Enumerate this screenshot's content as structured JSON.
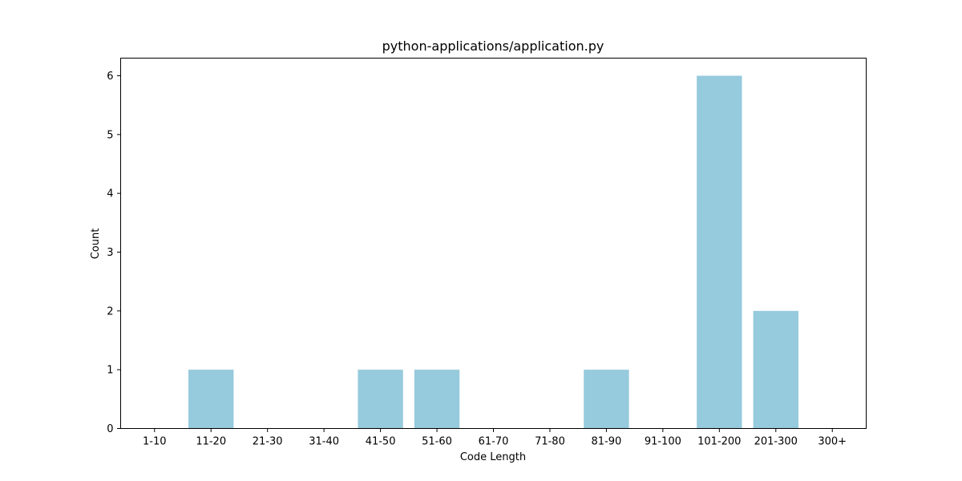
{
  "chart_data": {
    "type": "bar",
    "title": "python-applications/application.py",
    "xlabel": "Code Length",
    "ylabel": "Count",
    "categories": [
      "1-10",
      "11-20",
      "21-30",
      "31-40",
      "41-50",
      "51-60",
      "61-70",
      "71-80",
      "81-90",
      "91-100",
      "101-200",
      "201-300",
      "300+"
    ],
    "values": [
      0,
      1,
      0,
      0,
      1,
      1,
      0,
      0,
      1,
      0,
      6,
      2,
      0
    ],
    "ylim": [
      0,
      6.3
    ],
    "yticks": [
      "0",
      "1",
      "2",
      "3",
      "4",
      "5",
      "6"
    ],
    "bar_color": "#96cadd",
    "grid": false,
    "legend": false
  }
}
